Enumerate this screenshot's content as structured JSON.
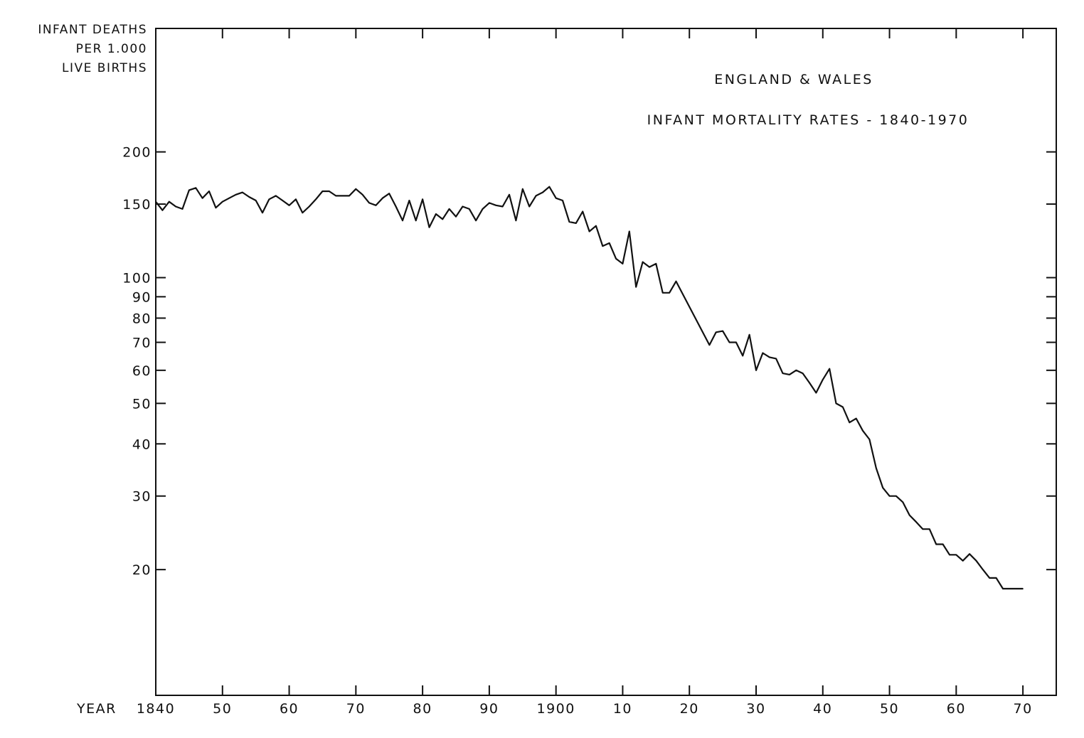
{
  "chart_data": {
    "type": "line",
    "title": "ENGLAND & WALES",
    "subtitle": "INFANT MORTALITY RATES - 1840-1970",
    "ylabel": [
      "INFANT DEATHS",
      "PER 1.000",
      "LIVE BIRTHS"
    ],
    "xlabel": "YEAR",
    "yscale": "log",
    "ylim": [
      10,
      395
    ],
    "xlim": [
      1840,
      1975
    ],
    "grid": false,
    "line_color": "#111111",
    "y_ticks": [
      200,
      150,
      100,
      90,
      80,
      70,
      60,
      50,
      40,
      30,
      20
    ],
    "x_ticks": [
      1840,
      1850,
      1860,
      1870,
      1880,
      1890,
      1900,
      1910,
      1920,
      1930,
      1940,
      1950,
      1960,
      1970
    ],
    "x_tick_labels": [
      "1840",
      "50",
      "60",
      "70",
      "80",
      "90",
      "1900",
      "10",
      "20",
      "30",
      "40",
      "50",
      "60",
      "70"
    ],
    "x": [
      1840,
      1841,
      1842,
      1843,
      1844,
      1845,
      1846,
      1847,
      1848,
      1849,
      1850,
      1851,
      1852,
      1853,
      1854,
      1855,
      1856,
      1857,
      1858,
      1859,
      1860,
      1861,
      1862,
      1863,
      1864,
      1865,
      1866,
      1867,
      1868,
      1869,
      1870,
      1871,
      1872,
      1873,
      1874,
      1875,
      1876,
      1877,
      1878,
      1879,
      1880,
      1881,
      1882,
      1883,
      1884,
      1885,
      1886,
      1887,
      1888,
      1889,
      1890,
      1891,
      1892,
      1893,
      1894,
      1895,
      1896,
      1897,
      1898,
      1899,
      1900,
      1901,
      1902,
      1903,
      1904,
      1905,
      1906,
      1907,
      1908,
      1909,
      1910,
      1911,
      1912,
      1913,
      1914,
      1915,
      1916,
      1917,
      1918,
      1923,
      1924,
      1925,
      1926,
      1927,
      1928,
      1929,
      1930,
      1931,
      1932,
      1933,
      1934,
      1935,
      1936,
      1937,
      1938,
      1939,
      1940,
      1941,
      1942,
      1943,
      1944,
      1945,
      1946,
      1947,
      1948,
      1949,
      1950,
      1951,
      1952,
      1953,
      1954,
      1955,
      1956,
      1957,
      1958,
      1959,
      1960,
      1961,
      1962,
      1963,
      1964,
      1965,
      1966,
      1967,
      1968,
      1969,
      1970
    ],
    "values": [
      152,
      145,
      152,
      148,
      146,
      162,
      164,
      155,
      161,
      147,
      152,
      155,
      158,
      160,
      156,
      153,
      143,
      154,
      157,
      153,
      149,
      154,
      143,
      148,
      154,
      161,
      161,
      157,
      157,
      157,
      163,
      158,
      151,
      149,
      155,
      159,
      148,
      137,
      153,
      137,
      154,
      132,
      142,
      138,
      146,
      140,
      148,
      146,
      137,
      146,
      151,
      149,
      148,
      158,
      137,
      163,
      148,
      157,
      160,
      165,
      155,
      153,
      136,
      135,
      144,
      129,
      133,
      119,
      121,
      111,
      108,
      129,
      95,
      109,
      106,
      108,
      92,
      92,
      98,
      69,
      74,
      74.5,
      70,
      70,
      65,
      73,
      60,
      66,
      64.5,
      64,
      59,
      58.6,
      60,
      59,
      56,
      53,
      57,
      60.5,
      50,
      49,
      45,
      46,
      43,
      41,
      35,
      31.4,
      30,
      30,
      29,
      27,
      26,
      25,
      25,
      23,
      23,
      21.7,
      21.7,
      21,
      21.8,
      21,
      20,
      19.1,
      19.1,
      18,
      18,
      18,
      18
    ]
  }
}
